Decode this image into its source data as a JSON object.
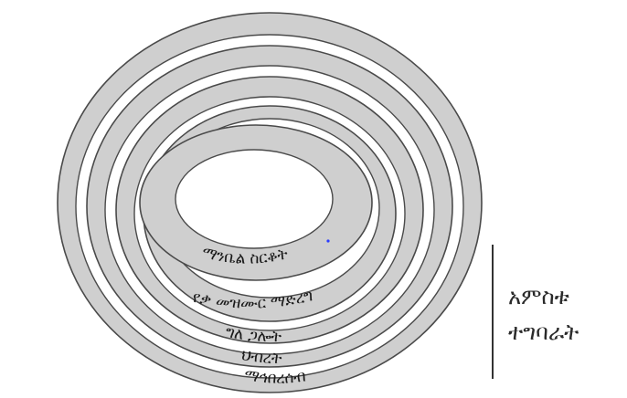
{
  "diagram": {
    "rings": [
      {
        "label": "ማኅበረሰብ"
      },
      {
        "label": "ህብረት"
      },
      {
        "label": "ግለ ጋሎት"
      },
      {
        "label": "የቃ መዝሙር ማድረግ"
      },
      {
        "label": "ማንቤል ስርቆት"
      }
    ],
    "side_label": {
      "line1": "አምስቱ",
      "line2": "ተግባራት"
    },
    "colors": {
      "ring_fill": "#cfcfcf",
      "gap_fill": "#ffffff",
      "stroke": "#4a4a4a"
    }
  }
}
